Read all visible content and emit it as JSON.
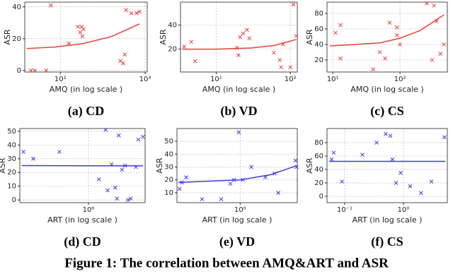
{
  "caption": "Figure 1: The correlation between AMQ&ART and ASR",
  "chart_data": [
    {
      "type": "scatter",
      "title": "(a) CD",
      "xlabel": "AMQ (in log scale )",
      "ylabel": "ASR",
      "xscale": "log",
      "grid": true,
      "xlim": [
        38,
        1060
      ],
      "ylim": [
        -1,
        43
      ],
      "xticks": [
        {
          "value": 100,
          "label": "10²"
        },
        {
          "value": 1000,
          "label": "10³"
        }
      ],
      "yticks": [
        0,
        20,
        40
      ],
      "series": [
        {
          "color": "#e8413a",
          "marker": "x",
          "x": [
            45,
            50,
            68,
            77,
            126,
            161,
            171,
            178,
            188,
            182,
            596,
            688,
            794,
            860,
            575,
            510,
            550
          ],
          "values": [
            0,
            0,
            0,
            41,
            17,
            27.5,
            24,
            27.5,
            26,
            21.5,
            38,
            36,
            36,
            37,
            10,
            6,
            4.5
          ]
        },
        {
          "color": "#e8413a",
          "marker": "line",
          "x": [
            40,
            86,
            186,
            400,
            860
          ],
          "values": [
            13.8,
            14.7,
            16.9,
            21.3,
            29.3
          ]
        }
      ]
    },
    {
      "type": "scatter",
      "title": "(b) VD",
      "xlabel": "AMQ (in log scale )",
      "ylabel": "ASR",
      "xscale": "log",
      "grid": true,
      "xlim": [
        3.3,
        124
      ],
      "ylim": [
        1,
        59
      ],
      "xticks": [
        {
          "value": 10,
          "label": "10¹"
        },
        {
          "value": 100,
          "label": "10²"
        }
      ],
      "yticks": [
        20,
        40
      ],
      "series": [
        {
          "color": "#e8413a",
          "marker": "x",
          "x": [
            3.7,
            4.6,
            5.2,
            19,
            20,
            21,
            23,
            26,
            28,
            60,
            72,
            75,
            80,
            100,
            110,
            120
          ],
          "values": [
            22,
            26,
            10,
            21,
            15,
            30,
            33,
            36,
            29,
            17,
            11,
            5,
            24,
            5,
            57,
            31
          ]
        },
        {
          "color": "#e8413a",
          "marker": "line",
          "x": [
            3.5,
            10,
            30,
            60,
            120
          ],
          "values": [
            20,
            20,
            21,
            23,
            28
          ]
        }
      ]
    },
    {
      "type": "scatter",
      "title": "(c) CS",
      "xlabel": "AMQ (in log scale )",
      "ylabel": "ASR",
      "xscale": "log",
      "grid": true,
      "xlim": [
        8.2,
        507
      ],
      "ylim": [
        4.5,
        94.5
      ],
      "xticks": [
        {
          "value": 10,
          "label": "10¹"
        },
        {
          "value": 100,
          "label": "10²"
        }
      ],
      "yticks": [
        20,
        40,
        60,
        80
      ],
      "series": [
        {
          "color": "#e8413a",
          "marker": "x",
          "x": [
            11,
            13,
            13,
            40,
            50,
            60,
            70,
            90,
            90,
            100,
            250,
            300,
            320,
            350,
            400,
            450
          ],
          "values": [
            55,
            65,
            22,
            8,
            30,
            22,
            68,
            52,
            62,
            40,
            93,
            20,
            90,
            70,
            28,
            40
          ]
        },
        {
          "color": "#e8413a",
          "marker": "line",
          "x": [
            9,
            50,
            100,
            200,
            450
          ],
          "values": [
            38,
            42,
            48,
            58,
            78
          ]
        }
      ]
    },
    {
      "type": "scatter",
      "title": "(d) CD",
      "xlabel": "ART (in log scale )",
      "ylabel": "ASR",
      "xscale": "log",
      "grid": true,
      "xlim": [
        0.3,
        2.7
      ],
      "ylim": [
        -2,
        52
      ],
      "xticks": [
        {
          "value": 1,
          "label": "10⁰"
        }
      ],
      "yticks": [
        0,
        10,
        20,
        30,
        40,
        50
      ],
      "series": [
        {
          "color": "#3a3ae8",
          "marker": "x",
          "x": [
            0.32,
            0.38,
            0.6,
            1.2,
            1.35,
            1.4,
            1.5,
            1.6,
            1.65,
            1.7,
            1.8,
            1.9,
            2.0,
            2.1,
            2.3,
            2.4,
            2.6
          ],
          "values": [
            35,
            30,
            35,
            15,
            51,
            7,
            26,
            9,
            1,
            47,
            22,
            25,
            0,
            1,
            24,
            44,
            46
          ]
        },
        {
          "color": "#3a3ae8",
          "marker": "line",
          "x": [
            0.31,
            2.6
          ],
          "values": [
            25,
            24.8
          ]
        }
      ]
    },
    {
      "type": "scatter",
      "title": "(e) VD",
      "xlabel": "ART (in log scale )",
      "ylabel": "ASR",
      "xscale": "log",
      "grid": true,
      "xlim": [
        0.1,
        8
      ],
      "ylim": [
        2.3,
        59.9
      ],
      "xticks": [
        {
          "value": 1,
          "label": "10⁰"
        }
      ],
      "yticks": [
        10,
        20,
        30,
        40,
        50
      ],
      "series": [
        {
          "color": "#3a3ae8",
          "marker": "x",
          "x": [
            0.11,
            0.12,
            0.14,
            0.25,
            0.5,
            0.7,
            0.8,
            0.95,
            1.1,
            1.5,
            2.5,
            3.5,
            4,
            7.5,
            7.8
          ],
          "values": [
            13,
            18,
            22,
            5,
            5,
            17,
            20,
            57,
            20,
            30,
            22,
            25,
            10,
            35,
            30
          ]
        },
        {
          "color": "#3a3ae8",
          "marker": "line",
          "x": [
            0.105,
            1,
            3,
            7.8
          ],
          "values": [
            18,
            20,
            24,
            31
          ]
        }
      ]
    },
    {
      "type": "scatter",
      "title": "(f) CS",
      "xlabel": "ART (in log scale )",
      "ylabel": "ASR",
      "xscale": "log",
      "grid": true,
      "xlim": [
        0.05,
        5.6
      ],
      "ylim": [
        -9.5,
        101
      ],
      "xticks": [
        {
          "value": 0.1,
          "label": "10⁻¹"
        },
        {
          "value": 1,
          "label": "10⁰"
        }
      ],
      "yticks": [
        0,
        20,
        40,
        60,
        80
      ],
      "series": [
        {
          "color": "#3a3ae8",
          "marker": "x",
          "x": [
            0.06,
            0.065,
            0.09,
            0.2,
            0.35,
            0.5,
            0.6,
            0.65,
            0.75,
            0.9,
            1.3,
            2,
            3,
            5
          ],
          "values": [
            55,
            65,
            22,
            62,
            80,
            93,
            90,
            55,
            20,
            35,
            15,
            5,
            22,
            88
          ]
        },
        {
          "color": "#3a3ae8",
          "marker": "line",
          "x": [
            0.055,
            5.2
          ],
          "values": [
            52,
            52
          ]
        }
      ]
    }
  ]
}
